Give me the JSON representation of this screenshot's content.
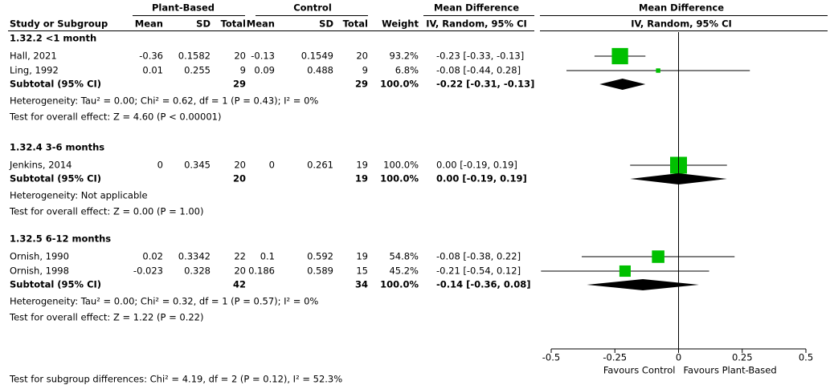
{
  "chart_data": {
    "type": "forest",
    "header": {
      "group1": "Plant-Based",
      "group2": "Control",
      "md_table": "Mean Difference",
      "md_plot": "Mean Difference"
    },
    "columns": [
      "Study or Subgroup",
      "Mean",
      "SD",
      "Total",
      "Mean",
      "SD",
      "Total",
      "Weight",
      "IV, Random, 95% CI",
      "IV, Random, 95% CI"
    ],
    "subgroups": [
      {
        "title": "1.32.2 <1 month",
        "studies": [
          {
            "name": "Hall, 2021",
            "pb_mean": -0.36,
            "pb_sd": 0.1582,
            "pb_total": 20,
            "c_mean": -0.13,
            "c_sd": 0.1549,
            "c_total": 20,
            "weight": 93.2,
            "weight_label": "93.2%",
            "md": -0.23,
            "ci_low": -0.33,
            "ci_high": -0.13,
            "ci_label": "-0.23 [-0.33, -0.13]"
          },
          {
            "name": "Ling, 1992",
            "pb_mean": 0.01,
            "pb_sd": 0.255,
            "pb_total": 9,
            "c_mean": 0.09,
            "c_sd": 0.488,
            "c_total": 9,
            "weight": 6.8,
            "weight_label": "6.8%",
            "md": -0.08,
            "ci_low": -0.44,
            "ci_high": 0.28,
            "ci_label": "-0.08 [-0.44, 0.28]"
          }
        ],
        "subtotal": {
          "label": "Subtotal (95% CI)",
          "pb_total": 29,
          "c_total": 29,
          "weight_label": "100.0%",
          "md": -0.22,
          "ci_low": -0.31,
          "ci_high": -0.13,
          "ci_label": "-0.22 [-0.31, -0.13]"
        },
        "heterogeneity": "Heterogeneity: Tau² = 0.00; Chi² = 0.62, df = 1 (P = 0.43); I² = 0%",
        "overall_effect": "Test for overall effect: Z = 4.60 (P < 0.00001)"
      },
      {
        "title": "1.32.4 3-6 months",
        "studies": [
          {
            "name": "Jenkins, 2014",
            "pb_mean": 0,
            "pb_sd": 0.345,
            "pb_total": 20,
            "c_mean": 0,
            "c_sd": 0.261,
            "c_total": 19,
            "weight": 100,
            "weight_label": "100.0%",
            "md": 0,
            "ci_low": -0.19,
            "ci_high": 0.19,
            "ci_label": "0.00 [-0.19, 0.19]"
          }
        ],
        "subtotal": {
          "label": "Subtotal (95% CI)",
          "pb_total": 20,
          "c_total": 19,
          "weight_label": "100.0%",
          "md": 0,
          "ci_low": -0.19,
          "ci_high": 0.19,
          "ci_label": "0.00 [-0.19, 0.19]"
        },
        "heterogeneity": "Heterogeneity: Not applicable",
        "overall_effect": "Test for overall effect: Z = 0.00 (P = 1.00)"
      },
      {
        "title": "1.32.5 6-12 months",
        "studies": [
          {
            "name": "Ornish, 1990",
            "pb_mean": 0.02,
            "pb_sd": 0.3342,
            "pb_total": 22,
            "c_mean": 0.1,
            "c_sd": 0.592,
            "c_total": 19,
            "weight": 54.8,
            "weight_label": "54.8%",
            "md": -0.08,
            "ci_low": -0.38,
            "ci_high": 0.22,
            "ci_label": "-0.08 [-0.38, 0.22]"
          },
          {
            "name": "Ornish, 1998",
            "pb_mean": -0.023,
            "pb_sd": 0.328,
            "pb_total": 20,
            "c_mean": 0.186,
            "c_sd": 0.589,
            "c_total": 15,
            "weight": 45.2,
            "weight_label": "45.2%",
            "md": -0.21,
            "ci_low": -0.54,
            "ci_high": 0.12,
            "ci_label": "-0.21 [-0.54, 0.12]"
          }
        ],
        "subtotal": {
          "label": "Subtotal (95% CI)",
          "pb_total": 42,
          "c_total": 34,
          "weight_label": "100.0%",
          "md": -0.14,
          "ci_low": -0.36,
          "ci_high": 0.08,
          "ci_label": "-0.14 [-0.36, 0.08]"
        },
        "heterogeneity": "Heterogeneity: Tau² = 0.00; Chi² = 0.32, df = 1 (P = 0.57); I² = 0%",
        "overall_effect": "Test for overall effect: Z = 1.22 (P = 0.22)"
      }
    ],
    "subgroup_test": "Test for subgroup differences: Chi² = 4.19, df = 2 (P = 0.12), I² = 52.3%",
    "xlim": [
      -0.5,
      0.5
    ],
    "xticks": [
      -0.5,
      -0.25,
      0,
      0.25,
      0.5
    ],
    "x_labels": [
      "Favours Control",
      "Favours Plant-Based"
    ],
    "color": "#00c000"
  }
}
